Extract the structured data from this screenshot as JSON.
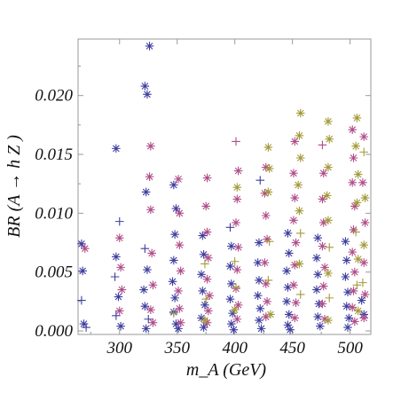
{
  "chart_data": {
    "type": "scatter",
    "title": "",
    "xlabel": "m_A (GeV)",
    "ylabel": "BR (A → h Z )",
    "xlim": [
      264,
      518
    ],
    "ylim": [
      -0.0003,
      0.0248
    ],
    "xticks": [
      300,
      350,
      400,
      450,
      500
    ],
    "yticks": [
      0.0,
      0.005,
      0.01,
      0.015,
      0.02
    ],
    "xtick_labels": [
      "300",
      "350",
      "400",
      "450",
      "500"
    ],
    "ytick_labels": [
      "0.000",
      "0.005",
      "0.010",
      "0.015",
      "0.020"
    ],
    "grid": false,
    "legend": "none",
    "colors": {
      "blue": "#3f3fa0",
      "magenta": "#b04d8a",
      "olive": "#a39a3a"
    },
    "marker_types": [
      "asterisk",
      "plus"
    ],
    "x_columns": [
      270,
      273,
      297,
      302,
      323,
      326,
      347,
      351,
      372,
      376,
      397,
      401,
      420,
      426,
      446,
      450,
      472,
      476,
      496,
      501
    ],
    "series": [
      {
        "color": "blue",
        "points": [
          [
            267,
            0.0074,
            "asterisk"
          ],
          [
            268,
            0.0051,
            "asterisk"
          ],
          [
            267,
            0.0026,
            "plus"
          ],
          [
            269,
            0.0006,
            "asterisk"
          ],
          [
            271,
            0.0003,
            "plus"
          ],
          [
            297,
            0.0155,
            "asterisk"
          ],
          [
            300,
            0.0093,
            "plus"
          ],
          [
            297,
            0.0063,
            "asterisk"
          ],
          [
            296,
            0.0046,
            "plus"
          ],
          [
            299,
            0.0029,
            "asterisk"
          ],
          [
            297,
            0.0013,
            "plus"
          ],
          [
            301,
            0.0004,
            "asterisk"
          ],
          [
            326,
            0.0242,
            "asterisk"
          ],
          [
            322,
            0.0208,
            "asterisk"
          ],
          [
            324,
            0.0201,
            "asterisk"
          ],
          [
            323,
            0.0118,
            "asterisk"
          ],
          [
            322,
            0.007,
            "plus"
          ],
          [
            324,
            0.0052,
            "asterisk"
          ],
          [
            321,
            0.0035,
            "asterisk"
          ],
          [
            322,
            0.0021,
            "asterisk"
          ],
          [
            325,
            0.001,
            "plus"
          ],
          [
            323,
            0.0002,
            "asterisk"
          ],
          [
            347,
            0.0124,
            "asterisk"
          ],
          [
            349,
            0.0104,
            "asterisk"
          ],
          [
            348,
            0.0082,
            "asterisk"
          ],
          [
            347,
            0.006,
            "asterisk"
          ],
          [
            346,
            0.0042,
            "asterisk"
          ],
          [
            348,
            0.0028,
            "asterisk"
          ],
          [
            347,
            0.0016,
            "asterisk"
          ],
          [
            349,
            0.0006,
            "asterisk"
          ],
          [
            351,
            0.0002,
            "asterisk"
          ],
          [
            372,
            0.0081,
            "asterisk"
          ],
          [
            373,
            0.0065,
            "asterisk"
          ],
          [
            371,
            0.0048,
            "asterisk"
          ],
          [
            372,
            0.0034,
            "asterisk"
          ],
          [
            374,
            0.0022,
            "asterisk"
          ],
          [
            371,
            0.0011,
            "asterisk"
          ],
          [
            373,
            0.0003,
            "asterisk"
          ],
          [
            396,
            0.0088,
            "plus"
          ],
          [
            397,
            0.0072,
            "asterisk"
          ],
          [
            396,
            0.0055,
            "asterisk"
          ],
          [
            397,
            0.004,
            "asterisk"
          ],
          [
            396,
            0.0027,
            "asterisk"
          ],
          [
            398,
            0.0015,
            "asterisk"
          ],
          [
            397,
            0.0006,
            "asterisk"
          ],
          [
            399,
            0.0001,
            "asterisk"
          ],
          [
            422,
            0.0128,
            "plus"
          ],
          [
            421,
            0.0075,
            "asterisk"
          ],
          [
            420,
            0.0058,
            "asterisk"
          ],
          [
            421,
            0.0043,
            "asterisk"
          ],
          [
            420,
            0.003,
            "asterisk"
          ],
          [
            422,
            0.0019,
            "asterisk"
          ],
          [
            421,
            0.0009,
            "asterisk"
          ],
          [
            423,
            0.0002,
            "asterisk"
          ],
          [
            446,
            0.0083,
            "asterisk"
          ],
          [
            447,
            0.0066,
            "asterisk"
          ],
          [
            445,
            0.0051,
            "asterisk"
          ],
          [
            446,
            0.0037,
            "asterisk"
          ],
          [
            445,
            0.0025,
            "asterisk"
          ],
          [
            447,
            0.0014,
            "asterisk"
          ],
          [
            446,
            0.0005,
            "asterisk"
          ],
          [
            448,
            0.0001,
            "asterisk"
          ],
          [
            472,
            0.0079,
            "asterisk"
          ],
          [
            471,
            0.0062,
            "asterisk"
          ],
          [
            472,
            0.0048,
            "asterisk"
          ],
          [
            471,
            0.0035,
            "asterisk"
          ],
          [
            473,
            0.0023,
            "asterisk"
          ],
          [
            472,
            0.0012,
            "asterisk"
          ],
          [
            474,
            0.0004,
            "asterisk"
          ],
          [
            496,
            0.0076,
            "asterisk"
          ],
          [
            497,
            0.006,
            "asterisk"
          ],
          [
            496,
            0.0046,
            "asterisk"
          ],
          [
            498,
            0.0033,
            "asterisk"
          ],
          [
            497,
            0.0021,
            "asterisk"
          ],
          [
            499,
            0.0011,
            "asterisk"
          ],
          [
            498,
            0.0003,
            "asterisk"
          ],
          [
            510,
            0.0026,
            "asterisk"
          ],
          [
            512,
            0.0014,
            "asterisk"
          ]
        ]
      },
      {
        "color": "magenta",
        "points": [
          [
            270,
            0.007,
            "asterisk"
          ],
          [
            300,
            0.0079,
            "asterisk"
          ],
          [
            301,
            0.0054,
            "asterisk"
          ],
          [
            302,
            0.0035,
            "asterisk"
          ],
          [
            300,
            0.0017,
            "asterisk"
          ],
          [
            327,
            0.0157,
            "asterisk"
          ],
          [
            326,
            0.0131,
            "asterisk"
          ],
          [
            327,
            0.0103,
            "asterisk"
          ],
          [
            328,
            0.0066,
            "asterisk"
          ],
          [
            329,
            0.0039,
            "asterisk"
          ],
          [
            327,
            0.0018,
            "asterisk"
          ],
          [
            329,
            0.0007,
            "asterisk"
          ],
          [
            351,
            0.0129,
            "asterisk"
          ],
          [
            352,
            0.01,
            "asterisk"
          ],
          [
            352,
            0.0073,
            "asterisk"
          ],
          [
            353,
            0.0051,
            "asterisk"
          ],
          [
            351,
            0.0034,
            "asterisk"
          ],
          [
            352,
            0.0019,
            "asterisk"
          ],
          [
            353,
            0.0007,
            "asterisk"
          ],
          [
            376,
            0.013,
            "asterisk"
          ],
          [
            375,
            0.0106,
            "asterisk"
          ],
          [
            376,
            0.0084,
            "asterisk"
          ],
          [
            377,
            0.0062,
            "asterisk"
          ],
          [
            376,
            0.0044,
            "asterisk"
          ],
          [
            378,
            0.003,
            "asterisk"
          ],
          [
            377,
            0.0017,
            "asterisk"
          ],
          [
            376,
            0.0007,
            "asterisk"
          ],
          [
            401,
            0.0161,
            "plus"
          ],
          [
            403,
            0.0136,
            "asterisk"
          ],
          [
            402,
            0.0112,
            "asterisk"
          ],
          [
            401,
            0.0092,
            "asterisk"
          ],
          [
            403,
            0.0071,
            "asterisk"
          ],
          [
            402,
            0.0052,
            "asterisk"
          ],
          [
            401,
            0.0036,
            "asterisk"
          ],
          [
            403,
            0.0022,
            "asterisk"
          ],
          [
            402,
            0.001,
            "asterisk"
          ],
          [
            427,
            0.0139,
            "asterisk"
          ],
          [
            426,
            0.0117,
            "asterisk"
          ],
          [
            427,
            0.0098,
            "asterisk"
          ],
          [
            428,
            0.0078,
            "asterisk"
          ],
          [
            426,
            0.0058,
            "asterisk"
          ],
          [
            427,
            0.004,
            "asterisk"
          ],
          [
            428,
            0.0025,
            "asterisk"
          ],
          [
            427,
            0.0012,
            "asterisk"
          ],
          [
            452,
            0.0161,
            "asterisk"
          ],
          [
            451,
            0.0134,
            "asterisk"
          ],
          [
            452,
            0.0113,
            "asterisk"
          ],
          [
            451,
            0.0094,
            "asterisk"
          ],
          [
            453,
            0.0075,
            "asterisk"
          ],
          [
            452,
            0.0056,
            "asterisk"
          ],
          [
            451,
            0.0039,
            "asterisk"
          ],
          [
            453,
            0.0024,
            "asterisk"
          ],
          [
            452,
            0.0011,
            "asterisk"
          ],
          [
            476,
            0.0158,
            "plus"
          ],
          [
            477,
            0.0134,
            "asterisk"
          ],
          [
            476,
            0.0112,
            "asterisk"
          ],
          [
            477,
            0.0092,
            "asterisk"
          ],
          [
            476,
            0.0072,
            "asterisk"
          ],
          [
            478,
            0.0054,
            "asterisk"
          ],
          [
            477,
            0.0038,
            "asterisk"
          ],
          [
            476,
            0.0023,
            "asterisk"
          ],
          [
            478,
            0.001,
            "asterisk"
          ],
          [
            502,
            0.0171,
            "asterisk"
          ],
          [
            503,
            0.0147,
            "asterisk"
          ],
          [
            502,
            0.0126,
            "asterisk"
          ],
          [
            504,
            0.0106,
            "asterisk"
          ],
          [
            503,
            0.0086,
            "asterisk"
          ],
          [
            502,
            0.0067,
            "asterisk"
          ],
          [
            504,
            0.005,
            "asterisk"
          ],
          [
            503,
            0.0034,
            "asterisk"
          ],
          [
            502,
            0.002,
            "asterisk"
          ],
          [
            504,
            0.0008,
            "asterisk"
          ],
          [
            512,
            0.0165,
            "asterisk"
          ],
          [
            511,
            0.0126,
            "asterisk"
          ],
          [
            513,
            0.0092,
            "asterisk"
          ],
          [
            512,
            0.0058,
            "asterisk"
          ],
          [
            513,
            0.0031,
            "asterisk"
          ],
          [
            512,
            0.0011,
            "asterisk"
          ]
        ]
      },
      {
        "color": "olive",
        "points": [
          [
            347,
            0.0015,
            "plus"
          ],
          [
            374,
            0.0057,
            "plus"
          ],
          [
            375,
            0.0027,
            "plus"
          ],
          [
            374,
            0.0009,
            "asterisk"
          ],
          [
            402,
            0.0122,
            "asterisk"
          ],
          [
            400,
            0.0059,
            "plus"
          ],
          [
            401,
            0.0037,
            "plus"
          ],
          [
            400,
            0.0018,
            "asterisk"
          ],
          [
            429,
            0.0156,
            "asterisk"
          ],
          [
            430,
            0.0138,
            "asterisk"
          ],
          [
            429,
            0.0118,
            "asterisk"
          ],
          [
            430,
            0.0076,
            "plus"
          ],
          [
            429,
            0.0043,
            "plus"
          ],
          [
            431,
            0.0014,
            "asterisk"
          ],
          [
            457,
            0.0185,
            "asterisk"
          ],
          [
            456,
            0.0166,
            "asterisk"
          ],
          [
            457,
            0.0147,
            "asterisk"
          ],
          [
            455,
            0.0124,
            "asterisk"
          ],
          [
            456,
            0.0102,
            "asterisk"
          ],
          [
            457,
            0.0083,
            "plus"
          ],
          [
            456,
            0.0057,
            "asterisk"
          ],
          [
            457,
            0.0031,
            "plus"
          ],
          [
            481,
            0.0178,
            "asterisk"
          ],
          [
            482,
            0.0163,
            "asterisk"
          ],
          [
            481,
            0.0139,
            "asterisk"
          ],
          [
            480,
            0.0115,
            "asterisk"
          ],
          [
            481,
            0.0094,
            "asterisk"
          ],
          [
            482,
            0.0071,
            "plus"
          ],
          [
            481,
            0.0049,
            "asterisk"
          ],
          [
            482,
            0.0028,
            "plus"
          ],
          [
            481,
            0.0009,
            "asterisk"
          ],
          [
            506,
            0.0181,
            "asterisk"
          ],
          [
            505,
            0.0157,
            "asterisk"
          ],
          [
            507,
            0.0133,
            "asterisk"
          ],
          [
            506,
            0.0109,
            "asterisk"
          ],
          [
            505,
            0.0084,
            "plus"
          ],
          [
            507,
            0.0061,
            "asterisk"
          ],
          [
            506,
            0.0039,
            "plus"
          ],
          [
            507,
            0.0017,
            "asterisk"
          ],
          [
            512,
            0.0152,
            "plus"
          ],
          [
            513,
            0.0113,
            "asterisk"
          ],
          [
            512,
            0.0073,
            "asterisk"
          ],
          [
            511,
            0.0041,
            "plus"
          ]
        ]
      }
    ]
  }
}
